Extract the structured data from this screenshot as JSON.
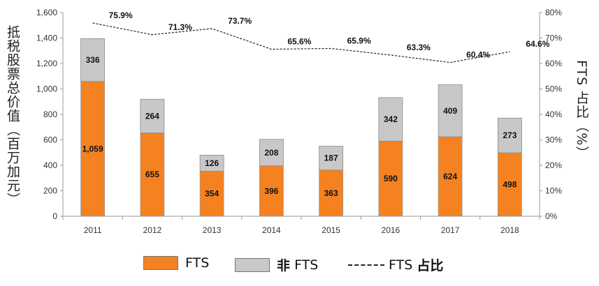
{
  "chart_data": {
    "type": "bar",
    "stacked": true,
    "categories": [
      "2011",
      "2012",
      "2013",
      "2014",
      "2015",
      "2016",
      "2017",
      "2018"
    ],
    "series": [
      {
        "name": "FTS",
        "color": "#F58220",
        "values": [
          1059,
          655,
          354,
          396,
          363,
          590,
          624,
          498
        ]
      },
      {
        "name": "非 FTS",
        "color": "#C8C8C8",
        "values": [
          336,
          264,
          126,
          208,
          187,
          342,
          409,
          273
        ]
      }
    ],
    "line_series": {
      "name": "FTS 占比",
      "axis": "right",
      "values": [
        75.9,
        71.3,
        73.7,
        65.6,
        65.9,
        63.3,
        60.4,
        64.6
      ],
      "labels": [
        "75.9%",
        "71.3%",
        "73.7%",
        "65.6%",
        "65.9%",
        "63.3%",
        "60.4%",
        "64.6%"
      ]
    },
    "bar_labels": {
      "FTS": [
        "1,059",
        "655",
        "354",
        "396",
        "363",
        "590",
        "624",
        "498"
      ],
      "非 FTS": [
        "336",
        "264",
        "126",
        "208",
        "187",
        "342",
        "409",
        "273"
      ]
    },
    "y_left": {
      "label": "抵税股票总价值（百万加元）",
      "ylim": [
        0,
        1600
      ],
      "ticks": [
        0,
        200,
        400,
        600,
        800,
        1000,
        1200,
        1400,
        1600
      ],
      "tick_labels": [
        "0",
        "200",
        "400",
        "600",
        "800",
        "1,000",
        "1,200",
        "1,400",
        "1,600"
      ]
    },
    "y_right": {
      "label": "FTS 占比（%）",
      "ylim": [
        0,
        80
      ],
      "ticks": [
        0,
        10,
        20,
        30,
        40,
        50,
        60,
        70,
        80
      ],
      "tick_labels": [
        "0%",
        "10%",
        "20%",
        "30%",
        "40%",
        "50%",
        "60%",
        "70%",
        "80%"
      ]
    },
    "legend": {
      "position": "bottom",
      "items": [
        {
          "label": "FTS",
          "kind": "swatch",
          "color": "#F58220"
        },
        {
          "label_prefix": "非",
          "label_suffix": "FTS",
          "kind": "swatch",
          "color": "#C8C8C8"
        },
        {
          "label_prefix": "FTS",
          "label_suffix": "占比",
          "kind": "dashed-line"
        }
      ]
    },
    "grid": false
  }
}
